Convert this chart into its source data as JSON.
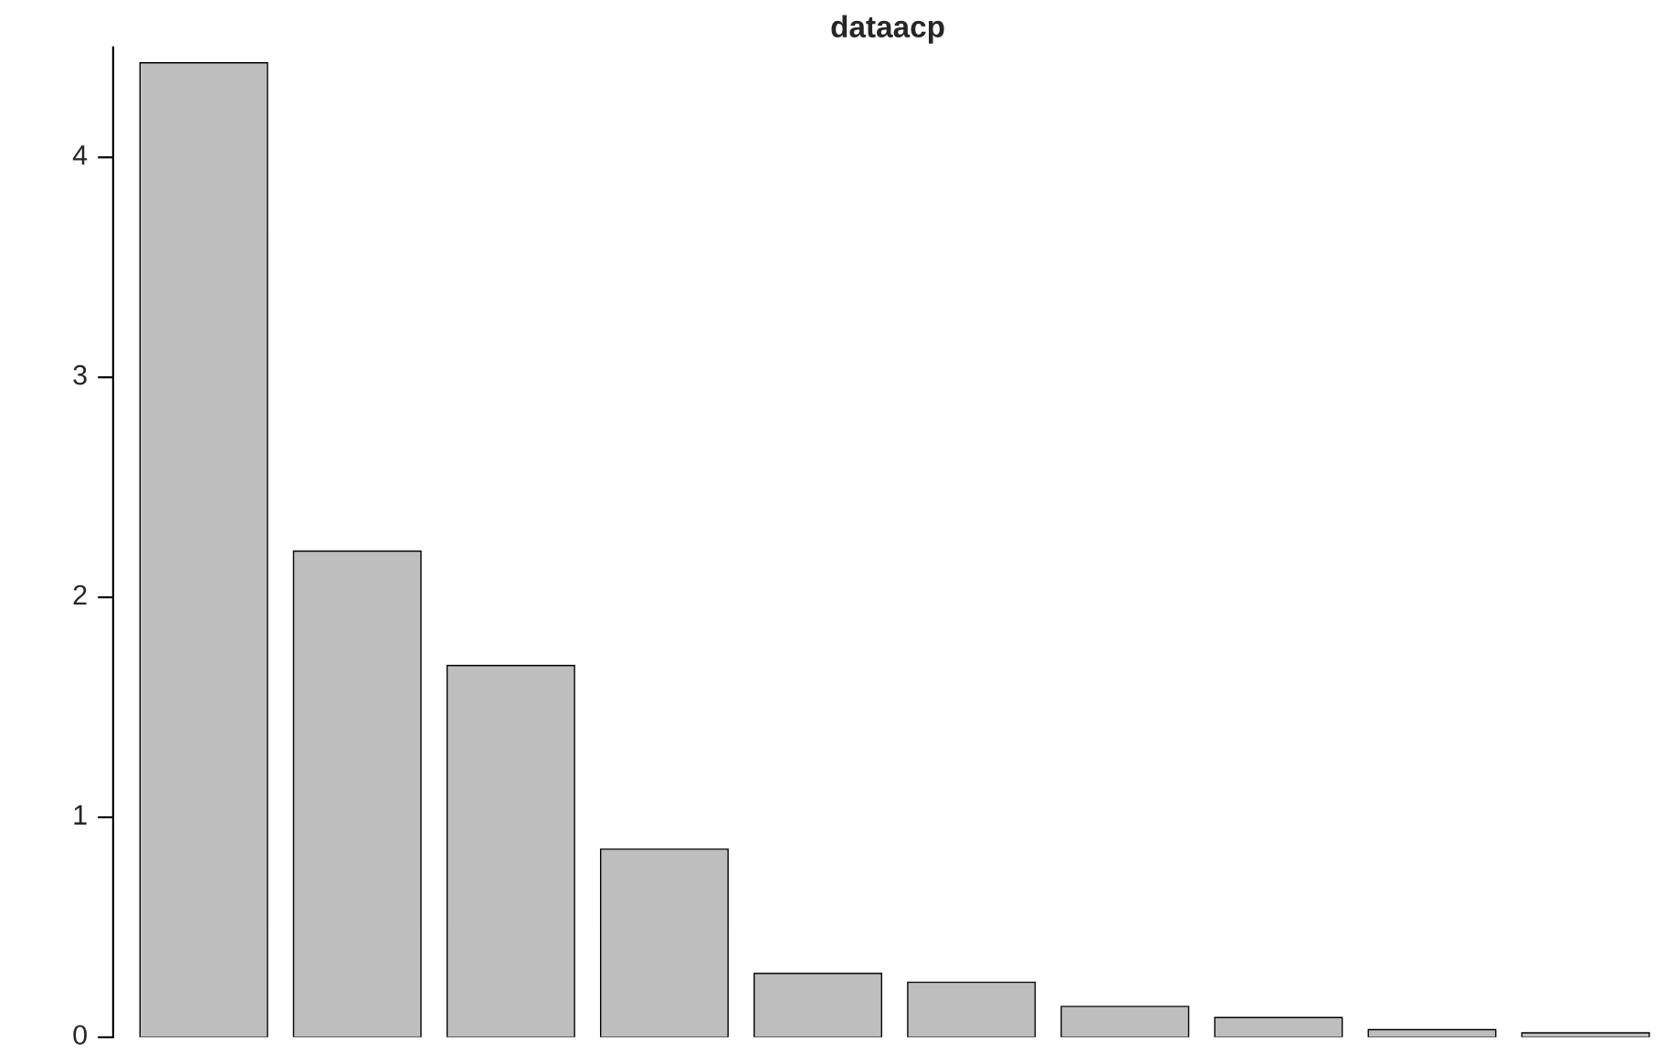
{
  "chart_data": {
    "type": "bar",
    "title": "dataacp",
    "categories": [
      null,
      null,
      null,
      null,
      null,
      null,
      null,
      null,
      null,
      null
    ],
    "values": [
      4.43,
      2.21,
      1.69,
      0.855,
      0.29,
      0.25,
      0.14,
      0.09,
      0.035,
      0.02
    ],
    "color": "#bebebe",
    "ylim": [
      0,
      4.5
    ],
    "yticks": [
      0,
      1,
      2,
      3,
      4
    ],
    "grid": false
  }
}
